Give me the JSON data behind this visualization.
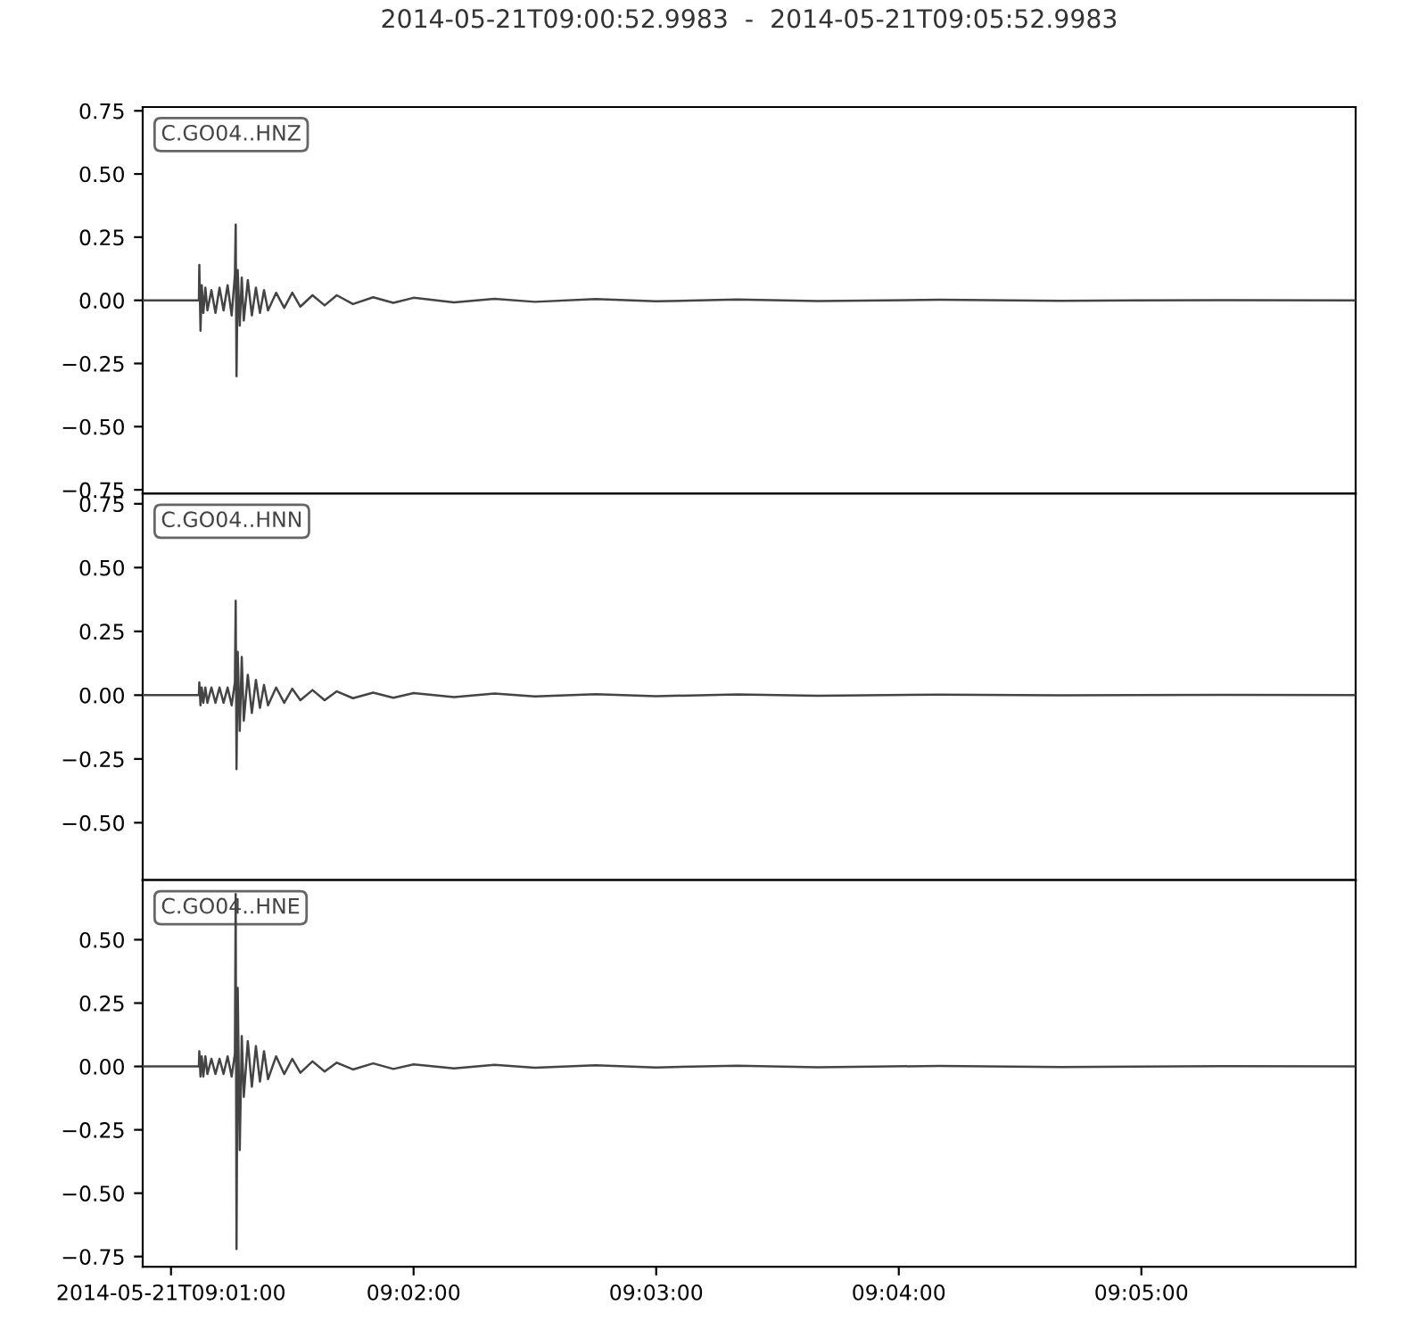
{
  "chart_data": [
    {
      "type": "line",
      "title": "2014-05-21T09:00:52.9983  -  2014-05-21T09:05:52.9983",
      "tick_labels": "y",
      "xlim": [
        9.014722,
        9.098055
      ],
      "ylim": [
        -0.765,
        0.765
      ],
      "yticks": [
        {
          "value": -0.75,
          "label": "−0.75"
        },
        {
          "value": -0.5,
          "label": "−0.50"
        },
        {
          "value": -0.25,
          "label": "−0.25"
        },
        {
          "value": 0,
          "label": "0.00"
        },
        {
          "value": 0.25,
          "label": "0.25"
        },
        {
          "value": 0.5,
          "label": "0.50"
        },
        {
          "value": 0.75,
          "label": "0.75"
        }
      ],
      "x": [
        9.014722,
        9.016667,
        9.018583,
        9.018611,
        9.018694,
        9.018778,
        9.018889,
        9.019028,
        9.019167,
        9.019444,
        9.019722,
        9.02,
        9.020278,
        9.020556,
        9.020833,
        9.021056,
        9.021111,
        9.021167,
        9.02125,
        9.021389,
        9.021528,
        9.021667,
        9.021944,
        9.022222,
        9.0225,
        9.022778,
        9.023056,
        9.023333,
        9.023889,
        9.024444,
        9.025,
        9.025556,
        9.026389,
        9.027222,
        9.028056,
        9.029167,
        9.030556,
        9.031944,
        9.033333,
        9.036111,
        9.038889,
        9.041667,
        9.045833,
        9.05,
        9.055556,
        9.061111,
        9.069444,
        9.077778,
        9.088889,
        9.098055
      ],
      "series": [
        {
          "name": "C.GO04..HNZ",
          "color": "#444444",
          "values": [
            0,
            0,
            0,
            0.14,
            -0.12,
            0.06,
            -0.05,
            0.05,
            -0.04,
            0.04,
            -0.05,
            0.05,
            -0.04,
            0.06,
            -0.06,
            0.1,
            0.3,
            -0.3,
            0.12,
            -0.1,
            0.09,
            -0.08,
            0.08,
            -0.06,
            0.05,
            -0.05,
            0.04,
            -0.04,
            0.03,
            -0.03,
            0.03,
            -0.025,
            0.02,
            -0.02,
            0.02,
            -0.015,
            0.012,
            -0.01,
            0.01,
            -0.008,
            0.006,
            -0.006,
            0.005,
            -0.004,
            0.003,
            -0.003,
            0.002,
            -0.002,
            0.001,
            0
          ]
        }
      ]
    },
    {
      "type": "line",
      "tick_labels": "y",
      "xlim": [
        9.014722,
        9.098055
      ],
      "ylim": [
        -0.725,
        0.79
      ],
      "yticks": [
        {
          "value": -0.5,
          "label": "−0.50"
        },
        {
          "value": -0.25,
          "label": "−0.25"
        },
        {
          "value": 0,
          "label": "0.00"
        },
        {
          "value": 0.25,
          "label": "0.25"
        },
        {
          "value": 0.5,
          "label": "0.50"
        },
        {
          "value": 0.75,
          "label": "0.75"
        }
      ],
      "x": [
        9.014722,
        9.016667,
        9.018583,
        9.018611,
        9.018694,
        9.018778,
        9.018889,
        9.019028,
        9.019167,
        9.019444,
        9.019722,
        9.02,
        9.020278,
        9.020556,
        9.020833,
        9.021056,
        9.021111,
        9.021167,
        9.02125,
        9.021389,
        9.021528,
        9.021667,
        9.021944,
        9.022222,
        9.0225,
        9.022778,
        9.023056,
        9.023333,
        9.023889,
        9.024444,
        9.025,
        9.025556,
        9.026389,
        9.027222,
        9.028056,
        9.029167,
        9.030556,
        9.031944,
        9.033333,
        9.036111,
        9.038889,
        9.041667,
        9.045833,
        9.05,
        9.055556,
        9.061111,
        9.069444,
        9.077778,
        9.088889,
        9.098055
      ],
      "series": [
        {
          "name": "C.GO04..HNN",
          "color": "#444444",
          "values": [
            0,
            0,
            0,
            0.05,
            -0.04,
            0.03,
            -0.03,
            0.03,
            -0.03,
            0.03,
            -0.03,
            0.03,
            -0.03,
            0.03,
            -0.04,
            0.05,
            0.37,
            -0.29,
            0.17,
            -0.14,
            0.15,
            -0.1,
            0.08,
            -0.07,
            0.06,
            -0.05,
            0.04,
            -0.04,
            0.03,
            -0.03,
            0.025,
            -0.02,
            0.02,
            -0.02,
            0.015,
            -0.012,
            0.01,
            -0.01,
            0.008,
            -0.008,
            0.006,
            -0.005,
            0.004,
            -0.004,
            0.003,
            -0.002,
            0.002,
            -0.001,
            0.001,
            0
          ]
        }
      ]
    },
    {
      "type": "line",
      "xlim": [
        9.014722,
        9.098055
      ],
      "ylim": [
        -0.79,
        0.735
      ],
      "xticks": [
        {
          "value": 9.016667,
          "label": "2014-05-21T09:01:00"
        },
        {
          "value": 9.033333,
          "label": "09:02:00"
        },
        {
          "value": 9.05,
          "label": "09:03:00"
        },
        {
          "value": 9.066667,
          "label": "09:04:00"
        },
        {
          "value": 9.083333,
          "label": "09:05:00"
        }
      ],
      "yticks": [
        {
          "value": -0.75,
          "label": "−0.75"
        },
        {
          "value": -0.5,
          "label": "−0.50"
        },
        {
          "value": -0.25,
          "label": "−0.25"
        },
        {
          "value": 0,
          "label": "0.00"
        },
        {
          "value": 0.25,
          "label": "0.25"
        },
        {
          "value": 0.5,
          "label": "0.50"
        }
      ],
      "x": [
        9.014722,
        9.016667,
        9.018583,
        9.018611,
        9.018694,
        9.018778,
        9.018889,
        9.019028,
        9.019167,
        9.019444,
        9.019722,
        9.02,
        9.020278,
        9.020556,
        9.020833,
        9.021056,
        9.021111,
        9.021167,
        9.02125,
        9.021389,
        9.021528,
        9.021667,
        9.021944,
        9.022222,
        9.0225,
        9.022778,
        9.023056,
        9.023333,
        9.023889,
        9.024444,
        9.025,
        9.025556,
        9.026389,
        9.027222,
        9.028056,
        9.029167,
        9.030556,
        9.031944,
        9.033333,
        9.036111,
        9.038889,
        9.041667,
        9.045833,
        9.05,
        9.055556,
        9.061111,
        9.069444,
        9.077778,
        9.088889,
        9.098055
      ],
      "series": [
        {
          "name": "C.GO04..HNE",
          "color": "#444444",
          "values": [
            0,
            0,
            0,
            0.06,
            -0.04,
            0.04,
            -0.04,
            0.04,
            -0.03,
            0.03,
            -0.03,
            0.03,
            -0.03,
            0.04,
            -0.04,
            0.05,
            0.68,
            -0.72,
            0.31,
            -0.33,
            0.12,
            -0.12,
            0.1,
            -0.08,
            0.08,
            -0.06,
            0.06,
            -0.05,
            0.04,
            -0.03,
            0.03,
            -0.025,
            0.02,
            -0.02,
            0.015,
            -0.012,
            0.012,
            -0.01,
            0.008,
            -0.008,
            0.006,
            -0.005,
            0.005,
            -0.004,
            0.003,
            -0.003,
            0.002,
            -0.002,
            0.001,
            0
          ]
        }
      ]
    }
  ]
}
